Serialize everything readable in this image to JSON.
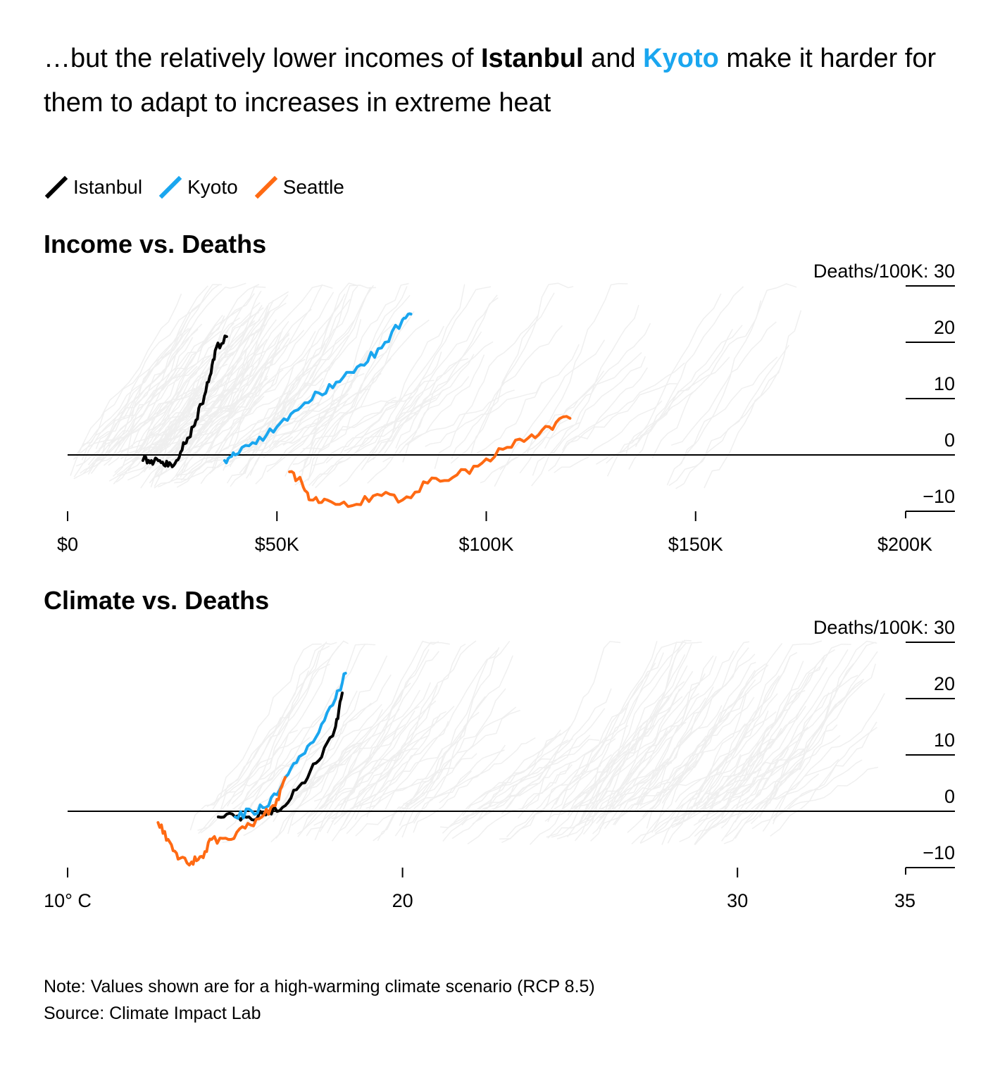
{
  "headline": {
    "part1": "…but the relatively lower incomes of ",
    "istanbul": "Istanbul",
    "and": " and ",
    "kyoto": "Kyoto",
    "part2": " make it harder for them to adapt to increases in extreme heat"
  },
  "legend": [
    {
      "label": "Istanbul",
      "color": "#000000"
    },
    {
      "label": "Kyoto",
      "color": "#1aa6ef"
    },
    {
      "label": "Seattle",
      "color": "#ff6a13"
    }
  ],
  "footer": {
    "note": "Note: Values shown are for a high-warming climate scenario (RCP 8.5)",
    "source": "Source: Climate Impact Lab"
  },
  "chart_data": [
    {
      "type": "line",
      "title": "Income vs. Deaths",
      "xlabel": "",
      "ylabel": "Deaths/100K",
      "xlim": [
        0,
        200000
      ],
      "ylim": [
        -10,
        30
      ],
      "x_ticks": [
        0,
        50000,
        100000,
        150000,
        200000
      ],
      "x_tick_labels": [
        "$0",
        "$50K",
        "$100K",
        "$150K",
        "$200K"
      ],
      "y_ticks": [
        30,
        20,
        10,
        0,
        -10
      ],
      "y_tick_labels": [
        "Deaths/100K: 30",
        "20",
        "10",
        "0",
        "−10"
      ],
      "grid": false,
      "legend_position": "top-left",
      "series": [
        {
          "name": "Istanbul",
          "color": "#000000",
          "x": [
            18000,
            20000,
            22000,
            24000,
            26000,
            28000,
            30000,
            32000,
            34000,
            35500,
            38000
          ],
          "y": [
            -1,
            -1,
            -1,
            -2,
            -1,
            2,
            5,
            9,
            14,
            19,
            21
          ]
        },
        {
          "name": "Kyoto",
          "color": "#1aa6ef",
          "x": [
            37500,
            40000,
            45000,
            50000,
            55000,
            60000,
            65000,
            70000,
            75000,
            80000,
            82000
          ],
          "y": [
            -1,
            0,
            2,
            5,
            8,
            11,
            13,
            16,
            19,
            24,
            25
          ]
        },
        {
          "name": "Seattle",
          "color": "#ff6a13",
          "x": [
            53000,
            56000,
            58000,
            62000,
            68000,
            74000,
            80000,
            86000,
            92000,
            98000,
            104000,
            110000,
            115000,
            120000
          ],
          "y": [
            -3,
            -5,
            -8,
            -8,
            -9,
            -7,
            -8,
            -5,
            -4,
            -2,
            1,
            3,
            5,
            6.5
          ]
        }
      ]
    },
    {
      "type": "line",
      "title": "Climate vs. Deaths",
      "xlabel": "",
      "ylabel": "Deaths/100K",
      "xlim": [
        10,
        35
      ],
      "ylim": [
        -10,
        30
      ],
      "x_ticks": [
        10,
        20,
        30,
        35
      ],
      "x_tick_labels": [
        "10° C",
        "20",
        "30",
        "35"
      ],
      "y_ticks": [
        30,
        20,
        10,
        0,
        -10
      ],
      "y_tick_labels": [
        "Deaths/100K: 30",
        "20",
        "10",
        "0",
        "−10"
      ],
      "grid": false,
      "series": [
        {
          "name": "Istanbul",
          "color": "#000000",
          "x": [
            14.5,
            15.0,
            15.5,
            16.0,
            16.5,
            17.0,
            17.5,
            18.0,
            18.2
          ],
          "y": [
            -1,
            -1,
            -1.5,
            0,
            1,
            5,
            9,
            15,
            21
          ]
        },
        {
          "name": "Kyoto",
          "color": "#1aa6ef",
          "x": [
            15.0,
            15.5,
            16.0,
            16.5,
            17.0,
            17.5,
            18.0,
            18.3
          ],
          "y": [
            -1,
            0,
            1,
            6,
            10,
            14,
            20,
            24.5
          ]
        },
        {
          "name": "Seattle",
          "color": "#ff6a13",
          "x": [
            12.7,
            13.0,
            13.3,
            13.7,
            14.0,
            14.3,
            14.8,
            15.3,
            15.8,
            16.2,
            16.5
          ],
          "y": [
            -2,
            -5,
            -8.5,
            -9,
            -8,
            -5,
            -5,
            -3,
            -1,
            1,
            6
          ]
        }
      ]
    }
  ]
}
